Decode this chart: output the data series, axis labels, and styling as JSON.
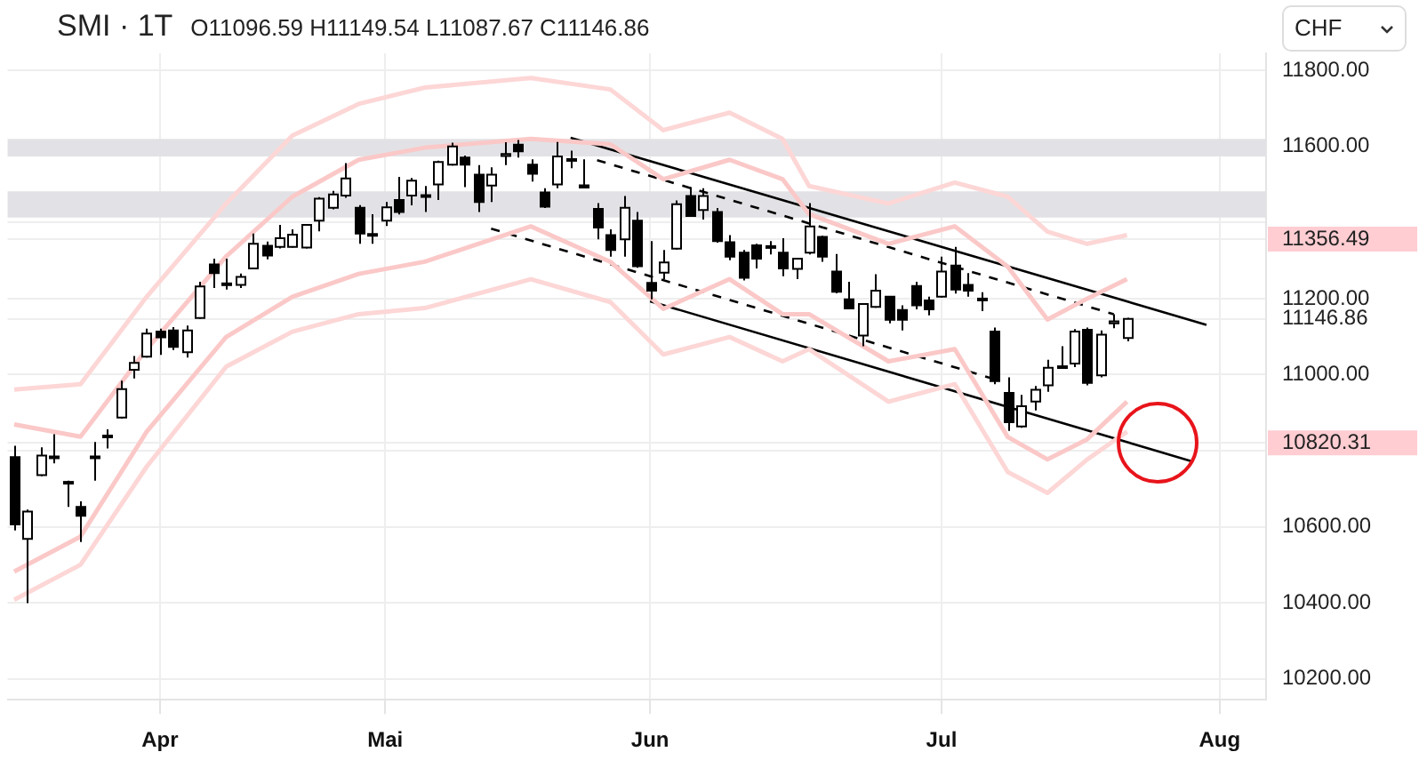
{
  "chart_data": {
    "type": "candlestick",
    "title": "SMI · 1T",
    "subtitle": "O11096.59 H11149.54 L11087.67 C11146.86",
    "ylabel": "CHF",
    "categories": [
      null,
      null,
      null,
      null,
      null,
      null,
      null,
      null,
      null,
      null,
      null,
      "Apr",
      null,
      null,
      null,
      null,
      null,
      null,
      null,
      null,
      null,
      null,
      null,
      null,
      null,
      null,
      null,
      null,
      "Mai",
      null,
      null,
      null,
      null,
      null,
      null,
      null,
      null,
      null,
      null,
      null,
      null,
      null,
      null,
      null,
      null,
      null,
      null,
      null,
      "Jun",
      null,
      null,
      null,
      null,
      null,
      null,
      null,
      null,
      null,
      null,
      null,
      null,
      null,
      null,
      null,
      null,
      null,
      null,
      null,
      null,
      null,
      "Jul",
      null,
      null,
      null,
      null,
      null,
      null,
      null,
      null,
      null,
      null,
      null,
      null,
      null,
      null,
      null,
      null,
      null,
      null,
      null,
      null,
      "Aug",
      null,
      null,
      null
    ],
    "ohlc": [
      [
        10783,
        10813,
        10590,
        10606
      ],
      [
        10568,
        10645,
        10399,
        10640
      ],
      [
        10736,
        10809,
        10733,
        10787
      ],
      [
        10780,
        10843,
        10767,
        10785
      ],
      [
        10718,
        10721,
        10652,
        10716
      ],
      [
        10652,
        10667,
        10560,
        10629
      ],
      [
        10780,
        10823,
        10721,
        10785
      ],
      [
        10835,
        10856,
        10806,
        10840
      ],
      [
        10887,
        10984,
        10885,
        10962
      ],
      [
        11013,
        11049,
        10990,
        11031
      ],
      [
        11047,
        11121,
        11045,
        11108
      ],
      [
        11113,
        11121,
        11052,
        11098
      ],
      [
        11116,
        11125,
        11065,
        11073
      ],
      [
        11059,
        11129,
        11045,
        11116
      ],
      [
        11149,
        11244,
        11147,
        11232
      ],
      [
        11290,
        11305,
        11228,
        11267
      ],
      [
        11240,
        11305,
        11224,
        11237
      ],
      [
        11236,
        11266,
        11228,
        11257
      ],
      [
        11279,
        11371,
        11277,
        11344
      ],
      [
        11339,
        11350,
        11303,
        11313
      ],
      [
        11336,
        11394,
        11332,
        11359
      ],
      [
        11336,
        11382,
        11334,
        11368
      ],
      [
        11334,
        11396,
        11332,
        11394
      ],
      [
        11405,
        11467,
        11377,
        11463
      ],
      [
        11439,
        11483,
        11435,
        11474
      ],
      [
        11471,
        11556,
        11465,
        11516
      ],
      [
        11439,
        11446,
        11344,
        11371
      ],
      [
        11370,
        11422,
        11344,
        11365
      ],
      [
        11405,
        11454,
        11391,
        11440
      ],
      [
        11459,
        11520,
        11421,
        11428
      ],
      [
        11471,
        11517,
        11445,
        11510
      ],
      [
        11468,
        11496,
        11428,
        11472
      ],
      [
        11500,
        11563,
        11459,
        11559
      ],
      [
        11552,
        11610,
        11550,
        11600
      ],
      [
        11571,
        11576,
        11493,
        11552
      ],
      [
        11526,
        11551,
        11428,
        11454
      ],
      [
        11497,
        11545,
        11454,
        11526
      ],
      [
        11575,
        11611,
        11551,
        11580
      ],
      [
        11605,
        11617,
        11571,
        11587
      ],
      [
        11552,
        11566,
        11508,
        11528
      ],
      [
        11479,
        11490,
        11438,
        11442
      ],
      [
        11500,
        11612,
        11490,
        11574
      ],
      [
        11563,
        11589,
        11543,
        11567
      ],
      [
        11498,
        11566,
        11490,
        11492
      ],
      [
        11436,
        11451,
        11356,
        11387
      ],
      [
        11367,
        11382,
        11310,
        11328
      ],
      [
        11356,
        11470,
        11310,
        11439
      ],
      [
        11405,
        11428,
        11281,
        11285
      ],
      [
        11241,
        11351,
        11198,
        11221
      ],
      [
        11268,
        11328,
        11251,
        11295
      ],
      [
        11331,
        11458,
        11329,
        11448
      ],
      [
        11470,
        11493,
        11415,
        11417
      ],
      [
        11433,
        11490,
        11408,
        11470
      ],
      [
        11428,
        11438,
        11347,
        11351
      ],
      [
        11348,
        11367,
        11301,
        11310
      ],
      [
        11321,
        11328,
        11248,
        11255
      ],
      [
        11340,
        11344,
        11279,
        11305
      ],
      [
        11338,
        11351,
        11316,
        11334
      ],
      [
        11321,
        11359,
        11259,
        11279
      ],
      [
        11278,
        11307,
        11251,
        11305
      ],
      [
        11321,
        11451,
        11316,
        11390
      ],
      [
        11362,
        11365,
        11297,
        11310
      ],
      [
        11271,
        11317,
        11214,
        11218
      ],
      [
        11198,
        11244,
        11172,
        11174
      ],
      [
        11103,
        11186,
        11075,
        11186
      ],
      [
        11178,
        11264,
        11176,
        11221
      ],
      [
        11205,
        11207,
        11135,
        11144
      ],
      [
        11170,
        11182,
        11116,
        11144
      ],
      [
        11233,
        11244,
        11172,
        11182
      ],
      [
        11195,
        11205,
        11156,
        11172
      ],
      [
        11205,
        11310,
        11203,
        11271
      ],
      [
        11287,
        11336,
        11213,
        11224
      ],
      [
        11236,
        11267,
        11205,
        11221
      ],
      [
        11196,
        11217,
        11167,
        11200
      ],
      [
        11113,
        11124,
        10975,
        10983
      ],
      [
        10952,
        10993,
        10852,
        10875
      ],
      [
        10864,
        10947,
        10860,
        10917
      ],
      [
        10929,
        10970,
        10906,
        10960
      ],
      [
        10972,
        11039,
        10955,
        11018
      ],
      [
        11020,
        11075,
        11018,
        11022
      ],
      [
        11029,
        11120,
        11020,
        11113
      ],
      [
        11118,
        11124,
        10972,
        10978
      ],
      [
        10998,
        11116,
        10993,
        11105
      ],
      [
        11135,
        11159,
        11122,
        11140
      ],
      [
        11096.59,
        11149.54,
        11087.67,
        11146.86
      ],
      null,
      null,
      null,
      null,
      null,
      null,
      null,
      null,
      null,
      null
    ],
    "series": [
      {
        "type": "line",
        "color": "#fdd6d6",
        "values": [
          10961,
          null,
          null,
          null,
          null,
          10975,
          null,
          null,
          null,
          null,
          11205,
          null,
          null,
          null,
          null,
          null,
          11450,
          null,
          null,
          null,
          null,
          11629,
          null,
          null,
          null,
          null,
          11712,
          null,
          null,
          null,
          null,
          11755,
          null,
          null,
          null,
          null,
          null,
          null,
          null,
          11780,
          null,
          null,
          null,
          null,
          null,
          11750,
          null,
          null,
          null,
          11643,
          null,
          null,
          null,
          null,
          11689,
          null,
          null,
          null,
          11620,
          null,
          11496,
          null,
          null,
          null,
          null,
          null,
          11450,
          null,
          null,
          null,
          null,
          11505,
          null,
          null,
          null,
          11468,
          null,
          null,
          11376,
          null,
          null,
          11344,
          null,
          null,
          11367,
          null,
          null,
          null,
          null,
          null,
          null,
          null,
          null,
          null,
          null
        ]
      },
      {
        "type": "line",
        "color": "#fbc8c8",
        "values": [
          10869,
          null,
          null,
          null,
          null,
          10837,
          null,
          null,
          null,
          null,
          11067,
          null,
          null,
          null,
          null,
          null,
          11311,
          null,
          null,
          null,
          null,
          11468,
          null,
          null,
          null,
          null,
          11565,
          null,
          null,
          null,
          null,
          11597,
          null,
          null,
          null,
          null,
          null,
          null,
          null,
          11620,
          null,
          null,
          null,
          null,
          null,
          11606,
          null,
          null,
          null,
          11514,
          null,
          null,
          null,
          null,
          11565,
          null,
          null,
          null,
          11514,
          null,
          11422,
          null,
          null,
          null,
          null,
          null,
          11344,
          null,
          null,
          null,
          null,
          11390,
          null,
          null,
          null,
          11284,
          null,
          null,
          11145,
          null,
          null,
          11200,
          null,
          null,
          11251,
          null,
          null,
          null,
          null,
          null,
          null,
          null,
          null,
          null,
          null
        ]
      },
      {
        "type": "line",
        "color": "#fbc8c8",
        "values": [
          10482,
          null,
          null,
          null,
          null,
          10574,
          null,
          null,
          null,
          null,
          10850,
          null,
          null,
          null,
          null,
          null,
          11099,
          null,
          null,
          null,
          null,
          11205,
          null,
          null,
          null,
          null,
          11265,
          null,
          null,
          null,
          null,
          11297,
          null,
          null,
          null,
          null,
          null,
          null,
          null,
          11390,
          null,
          null,
          null,
          null,
          null,
          11297,
          null,
          null,
          null,
          11173,
          null,
          null,
          null,
          null,
          11251,
          null,
          null,
          null,
          11159,
          null,
          11159,
          null,
          null,
          null,
          null,
          null,
          11035,
          null,
          null,
          null,
          null,
          11067,
          null,
          null,
          null,
          10836,
          null,
          null,
          10777,
          null,
          null,
          10830,
          null,
          null,
          10929,
          null,
          null,
          null,
          null,
          null,
          null,
          null,
          null,
          null,
          null
        ]
      },
      {
        "type": "line",
        "color": "#fdd6d6",
        "values": [
          10408,
          null,
          null,
          null,
          null,
          10500,
          null,
          null,
          null,
          null,
          10758,
          null,
          null,
          null,
          null,
          null,
          11021,
          null,
          null,
          null,
          null,
          11113,
          null,
          null,
          null,
          null,
          11159,
          null,
          null,
          null,
          null,
          11175,
          null,
          null,
          null,
          null,
          null,
          null,
          null,
          11251,
          null,
          null,
          null,
          null,
          null,
          11191,
          null,
          null,
          null,
          11053,
          null,
          null,
          null,
          null,
          11099,
          null,
          null,
          null,
          11035,
          null,
          11067,
          null,
          null,
          null,
          null,
          null,
          10929,
          null,
          null,
          null,
          null,
          10975,
          null,
          null,
          null,
          10744,
          null,
          null,
          10689,
          null,
          null,
          10777,
          null,
          null,
          10850,
          null,
          null,
          null,
          null,
          null,
          null,
          null,
          null,
          null,
          null
        ]
      },
      {
        "type": "line",
        "color": "#000000",
        "line_style": "solid",
        "values": [
          null,
          null,
          null,
          null,
          null,
          null,
          null,
          null,
          null,
          null,
          null,
          null,
          null,
          null,
          null,
          null,
          null,
          null,
          null,
          null,
          null,
          null,
          null,
          null,
          null,
          null,
          null,
          null,
          null,
          null,
          null,
          null,
          null,
          null,
          null,
          null,
          null,
          null,
          null,
          null,
          null,
          null,
          11623,
          null,
          null,
          null,
          null,
          null,
          null,
          null,
          null,
          null,
          null,
          null,
          null,
          null,
          null,
          null,
          null,
          null,
          null,
          null,
          null,
          null,
          null,
          null,
          null,
          null,
          null,
          null,
          null,
          null,
          null,
          null,
          null,
          null,
          null,
          null,
          null,
          null,
          null,
          null,
          null,
          null,
          null,
          null,
          null,
          null,
          null,
          null,
          11131,
          null,
          null,
          null,
          null
        ]
      },
      {
        "type": "line",
        "color": "#000000",
        "line_style": "solid",
        "values": [
          null,
          null,
          null,
          null,
          null,
          null,
          null,
          null,
          null,
          null,
          null,
          null,
          null,
          null,
          null,
          null,
          null,
          null,
          null,
          null,
          null,
          null,
          null,
          null,
          null,
          null,
          null,
          null,
          null,
          null,
          null,
          null,
          null,
          null,
          null,
          null,
          null,
          null,
          null,
          null,
          null,
          null,
          null,
          null,
          null,
          null,
          null,
          null,
          11193,
          null,
          null,
          null,
          null,
          null,
          null,
          null,
          null,
          null,
          null,
          null,
          null,
          null,
          null,
          null,
          null,
          null,
          null,
          null,
          null,
          null,
          null,
          null,
          null,
          null,
          null,
          null,
          null,
          null,
          null,
          null,
          null,
          null,
          null,
          null,
          null,
          null,
          null,
          null,
          null,
          10771,
          null,
          null,
          null,
          null,
          null
        ]
      },
      {
        "type": "line",
        "color": "#000000",
        "line_style": "dashed",
        "values": [
          null,
          null,
          null,
          null,
          null,
          null,
          null,
          null,
          null,
          null,
          null,
          null,
          null,
          null,
          null,
          null,
          null,
          null,
          null,
          null,
          null,
          null,
          null,
          null,
          null,
          null,
          null,
          null,
          null,
          null,
          null,
          null,
          null,
          null,
          null,
          null,
          null,
          null,
          null,
          null,
          null,
          null,
          null,
          null,
          11564,
          null,
          null,
          null,
          null,
          null,
          null,
          null,
          null,
          null,
          null,
          null,
          null,
          null,
          null,
          null,
          null,
          null,
          null,
          null,
          null,
          null,
          null,
          null,
          null,
          null,
          null,
          null,
          null,
          null,
          null,
          null,
          null,
          null,
          null,
          null,
          null,
          null,
          null,
          11159,
          null,
          null,
          null,
          null,
          null,
          null,
          null,
          null,
          null,
          null,
          null
        ]
      },
      {
        "type": "line",
        "color": "#000000",
        "line_style": "dashed",
        "values": [
          null,
          null,
          null,
          null,
          null,
          null,
          null,
          null,
          null,
          null,
          null,
          null,
          null,
          null,
          null,
          null,
          null,
          null,
          null,
          null,
          null,
          null,
          null,
          null,
          null,
          null,
          null,
          null,
          null,
          null,
          null,
          null,
          null,
          null,
          null,
          null,
          11384,
          null,
          null,
          null,
          null,
          null,
          null,
          null,
          null,
          null,
          null,
          null,
          null,
          null,
          null,
          null,
          null,
          null,
          null,
          null,
          null,
          null,
          null,
          null,
          null,
          null,
          null,
          null,
          null,
          null,
          null,
          null,
          null,
          null,
          null,
          null,
          null,
          null,
          10988,
          null,
          null,
          null,
          null,
          null,
          null,
          null,
          null,
          null,
          null,
          null,
          null,
          null,
          null,
          null,
          null,
          null,
          null,
          null,
          null
        ]
      }
    ],
    "ylim": [
      10145,
      11845
    ],
    "yticks": [
      {
        "value": 10200,
        "label": "10200.00"
      },
      {
        "value": 10400,
        "label": "10400.00"
      },
      {
        "value": 10600,
        "label": "10600.00"
      },
      {
        "value": 10800,
        "label": null
      },
      {
        "value": 10820.31,
        "label": "10820.31"
      },
      {
        "value": 11000,
        "label": "11000.00"
      },
      {
        "value": 11146.86,
        "label": "11146.86"
      },
      {
        "value": 11200,
        "label": "11200.00"
      },
      {
        "value": 11356.49,
        "label": "11356.49"
      },
      {
        "value": 11400,
        "label": null
      },
      {
        "value": 11600,
        "label": "11600.00"
      },
      {
        "value": 11800,
        "label": "11800.00"
      }
    ],
    "bands": [
      {
        "axis": "y",
        "from": 11574,
        "to": 11620,
        "color": "#e2e2e6"
      },
      {
        "axis": "y",
        "from": 11413,
        "to": 11482,
        "color": "#e2e2e6"
      }
    ],
    "grid": true,
    "legend": false
  }
}
